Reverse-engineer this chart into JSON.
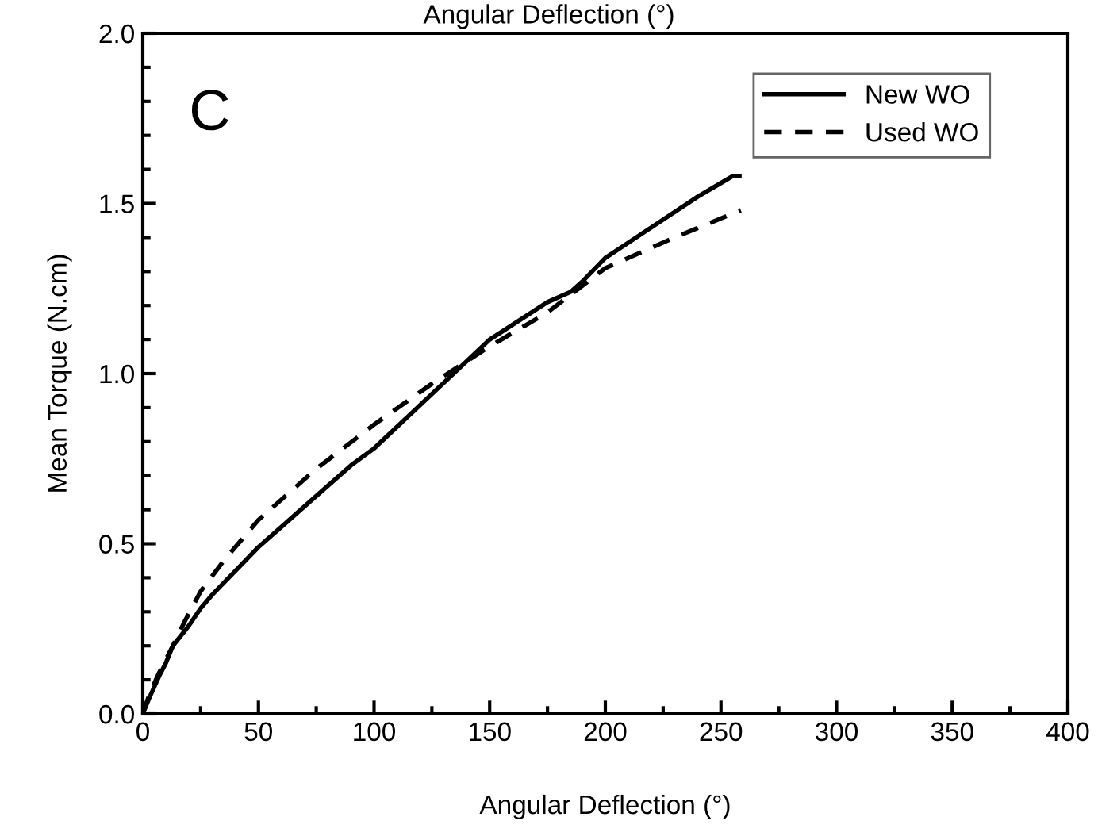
{
  "chart_data": {
    "type": "line",
    "xlabel": "Angular Deflection (°)",
    "ylabel": "Mean Torque (N.cm)",
    "annotations": [
      "Angular Deflection (°)",
      "C"
    ],
    "xlim": [
      0,
      400
    ],
    "ylim": [
      0,
      2.0
    ],
    "xticks": [
      0,
      {
        "value": 25,
        "label": null
      },
      50,
      {
        "value": 75,
        "label": null
      },
      100,
      {
        "value": 125,
        "label": null
      },
      150,
      {
        "value": 175,
        "label": null
      },
      200,
      {
        "value": 225,
        "label": null
      },
      250,
      {
        "value": 275,
        "label": null
      },
      300,
      {
        "value": 325,
        "label": null
      },
      350,
      {
        "value": 375,
        "label": null
      },
      400
    ],
    "yticks": [
      {
        "value": 0,
        "label": "0.0"
      },
      {
        "value": 0.1,
        "label": null
      },
      {
        "value": 0.2,
        "label": null
      },
      {
        "value": 0.3,
        "label": null
      },
      {
        "value": 0.4,
        "label": null
      },
      0.5,
      {
        "value": 0.6,
        "label": null
      },
      {
        "value": 0.7,
        "label": null
      },
      {
        "value": 0.8,
        "label": null
      },
      {
        "value": 0.9,
        "label": null
      },
      {
        "value": 1,
        "label": "1.0"
      },
      {
        "value": 1.1,
        "label": null
      },
      {
        "value": 1.2,
        "label": null
      },
      {
        "value": 1.3,
        "label": null
      },
      {
        "value": 1.4,
        "label": null
      },
      1.5,
      {
        "value": 1.6,
        "label": null
      },
      {
        "value": 1.7,
        "label": null
      },
      {
        "value": 1.8,
        "label": null
      },
      {
        "value": 1.9,
        "label": null
      },
      {
        "value": 2,
        "label": "2.0"
      }
    ],
    "grid": false,
    "legend": "top right",
    "series": [
      {
        "name": "New WO",
        "color": "#000000",
        "line_style": "solid",
        "x": [
          0,
          3,
          7,
          10,
          13,
          20,
          25,
          30,
          40,
          50,
          60,
          75,
          90,
          100,
          125,
          150,
          175,
          185,
          190,
          200,
          220,
          240,
          250,
          255,
          258
        ],
        "values": [
          0,
          0.05,
          0.11,
          0.15,
          0.2,
          0.26,
          0.31,
          0.35,
          0.42,
          0.49,
          0.55,
          0.64,
          0.73,
          0.78,
          0.94,
          1.1,
          1.21,
          1.24,
          1.27,
          1.34,
          1.43,
          1.52,
          1.56,
          1.58,
          1.58
        ]
      },
      {
        "name": "Used WO",
        "color": "#000000",
        "line_style": "dashed",
        "x": [
          0,
          3,
          7,
          10,
          13,
          18,
          25,
          35,
          50,
          75,
          100,
          125,
          150,
          175,
          200,
          230,
          258.6
        ],
        "values": [
          0,
          0.06,
          0.12,
          0.16,
          0.2,
          0.27,
          0.36,
          0.45,
          0.57,
          0.72,
          0.85,
          0.97,
          1.08,
          1.18,
          1.31,
          1.4,
          1.48
        ]
      }
    ]
  }
}
